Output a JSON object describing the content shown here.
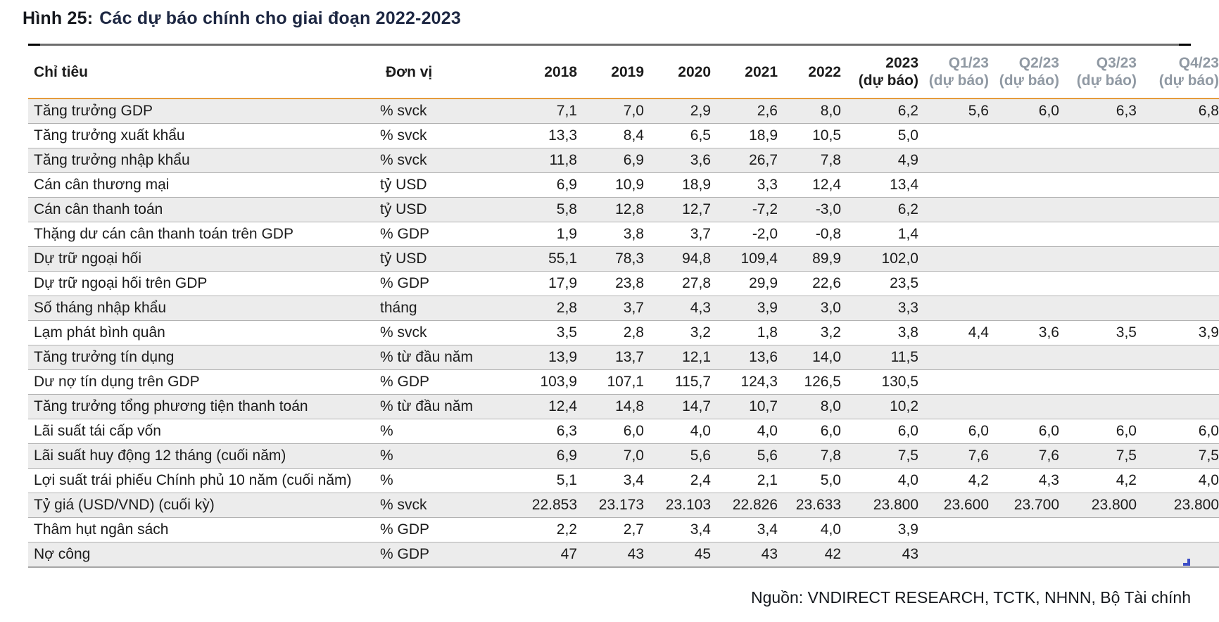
{
  "title": {
    "prefix": "Hình 25:",
    "text": "Các dự báo chính cho giai đoạn 2022-2023"
  },
  "source": "Nguồn: VNDIRECT RESEARCH, TCTK, NHNN, Bộ Tài chính",
  "colors": {
    "accent_orange": "#e59b3c",
    "muted_header": "#9099a3",
    "row_shade": "#ececec",
    "row_border": "#b2b2b2",
    "corner_blue": "#3d4ec6"
  },
  "table": {
    "columns": [
      {
        "id": "chi-tieu",
        "label": "Chỉ tiêu",
        "sub": "",
        "muted": false
      },
      {
        "id": "don-vi",
        "label": "Đơn vị",
        "sub": "",
        "muted": false
      },
      {
        "id": "2018",
        "label": "2018",
        "sub": "",
        "muted": false
      },
      {
        "id": "2019",
        "label": "2019",
        "sub": "",
        "muted": false
      },
      {
        "id": "2020",
        "label": "2020",
        "sub": "",
        "muted": false
      },
      {
        "id": "2021",
        "label": "2021",
        "sub": "",
        "muted": false
      },
      {
        "id": "2022",
        "label": "2022",
        "sub": "",
        "muted": false
      },
      {
        "id": "2023-du-bao",
        "label": "2023",
        "sub": "(dự báo)",
        "muted": false
      },
      {
        "id": "q1-23",
        "label": "Q1/23",
        "sub": "(dự báo)",
        "muted": true
      },
      {
        "id": "q2-23",
        "label": "Q2/23",
        "sub": "(dự báo)",
        "muted": true
      },
      {
        "id": "q3-23",
        "label": "Q3/23",
        "sub": "(dự báo)",
        "muted": true
      },
      {
        "id": "q4-23",
        "label": "Q4/23",
        "sub": "(dự báo)",
        "muted": true
      }
    ],
    "rows": [
      {
        "label": "Tăng trưởng GDP",
        "unit": "% svck",
        "values": [
          "7,1",
          "7,0",
          "2,9",
          "2,6",
          "8,0",
          "6,2",
          "5,6",
          "6,0",
          "6,3",
          "6,8"
        ]
      },
      {
        "label": "Tăng trưởng xuất khẩu",
        "unit": "% svck",
        "values": [
          "13,3",
          "8,4",
          "6,5",
          "18,9",
          "10,5",
          "5,0",
          "",
          "",
          "",
          ""
        ]
      },
      {
        "label": "Tăng trưởng nhập khẩu",
        "unit": "% svck",
        "values": [
          "11,8",
          "6,9",
          "3,6",
          "26,7",
          "7,8",
          "4,9",
          "",
          "",
          "",
          ""
        ]
      },
      {
        "label": "Cán cân thương mại",
        "unit": "tỷ USD",
        "values": [
          "6,9",
          "10,9",
          "18,9",
          "3,3",
          "12,4",
          "13,4",
          "",
          "",
          "",
          ""
        ]
      },
      {
        "label": "Cán cân thanh toán",
        "unit": "tỷ USD",
        "values": [
          "5,8",
          "12,8",
          "12,7",
          "-7,2",
          "-3,0",
          "6,2",
          "",
          "",
          "",
          ""
        ]
      },
      {
        "label": "Thặng dư cán cân thanh toán trên GDP",
        "unit": "% GDP",
        "values": [
          "1,9",
          "3,8",
          "3,7",
          "-2,0",
          "-0,8",
          "1,4",
          "",
          "",
          "",
          ""
        ]
      },
      {
        "label": "Dự trữ ngoại hối",
        "unit": "tỷ USD",
        "values": [
          "55,1",
          "78,3",
          "94,8",
          "109,4",
          "89,9",
          "102,0",
          "",
          "",
          "",
          ""
        ]
      },
      {
        "label": "Dự trữ ngoại hối trên GDP",
        "unit": "% GDP",
        "values": [
          "17,9",
          "23,8",
          "27,8",
          "29,9",
          "22,6",
          "23,5",
          "",
          "",
          "",
          ""
        ]
      },
      {
        "label": "Số tháng nhập khẩu",
        "unit": "tháng",
        "values": [
          "2,8",
          "3,7",
          "4,3",
          "3,9",
          "3,0",
          "3,3",
          "",
          "",
          "",
          ""
        ]
      },
      {
        "label": "Lạm phát bình quân",
        "unit": "% svck",
        "values": [
          "3,5",
          "2,8",
          "3,2",
          "1,8",
          "3,2",
          "3,8",
          "4,4",
          "3,6",
          "3,5",
          "3,9"
        ]
      },
      {
        "label": "Tăng trưởng tín dụng",
        "unit": "% từ đầu năm",
        "values": [
          "13,9",
          "13,7",
          "12,1",
          "13,6",
          "14,0",
          "11,5",
          "",
          "",
          "",
          ""
        ]
      },
      {
        "label": "Dư nợ tín dụng trên GDP",
        "unit": "% GDP",
        "values": [
          "103,9",
          "107,1",
          "115,7",
          "124,3",
          "126,5",
          "130,5",
          "",
          "",
          "",
          ""
        ]
      },
      {
        "label": "Tăng trưởng tổng phương tiện thanh toán",
        "unit": "% từ đầu năm",
        "values": [
          "12,4",
          "14,8",
          "14,7",
          "10,7",
          "8,0",
          "10,2",
          "",
          "",
          "",
          ""
        ]
      },
      {
        "label": "Lãi suất tái cấp vốn",
        "unit": "%",
        "values": [
          "6,3",
          "6,0",
          "4,0",
          "4,0",
          "6,0",
          "6,0",
          "6,0",
          "6,0",
          "6,0",
          "6,0"
        ]
      },
      {
        "label": "Lãi suất huy động 12 tháng (cuối năm)",
        "unit": "%",
        "values": [
          "6,9",
          "7,0",
          "5,6",
          "5,6",
          "7,8",
          "7,5",
          "7,6",
          "7,6",
          "7,5",
          "7,5"
        ]
      },
      {
        "label": "Lợi suất trái phiếu Chính phủ 10 năm (cuối năm)",
        "unit": "%",
        "values": [
          "5,1",
          "3,4",
          "2,4",
          "2,1",
          "5,0",
          "4,0",
          "4,2",
          "4,3",
          "4,2",
          "4,0"
        ]
      },
      {
        "label": "Tỷ giá (USD/VND) (cuối kỳ)",
        "unit": "% svck",
        "values": [
          "22.853",
          "23.173",
          "23.103",
          "22.826",
          "23.633",
          "23.800",
          "23.600",
          "23.700",
          "23.800",
          "23.800"
        ]
      },
      {
        "label": "Thâm hụt ngân sách",
        "unit": "% GDP",
        "values": [
          "2,2",
          "2,7",
          "3,4",
          "3,4",
          "4,0",
          "3,9",
          "",
          "",
          "",
          ""
        ]
      },
      {
        "label": "Nợ công",
        "unit": "% GDP",
        "values": [
          "47",
          "43",
          "45",
          "43",
          "42",
          "43",
          "",
          "",
          "",
          ""
        ]
      }
    ]
  }
}
